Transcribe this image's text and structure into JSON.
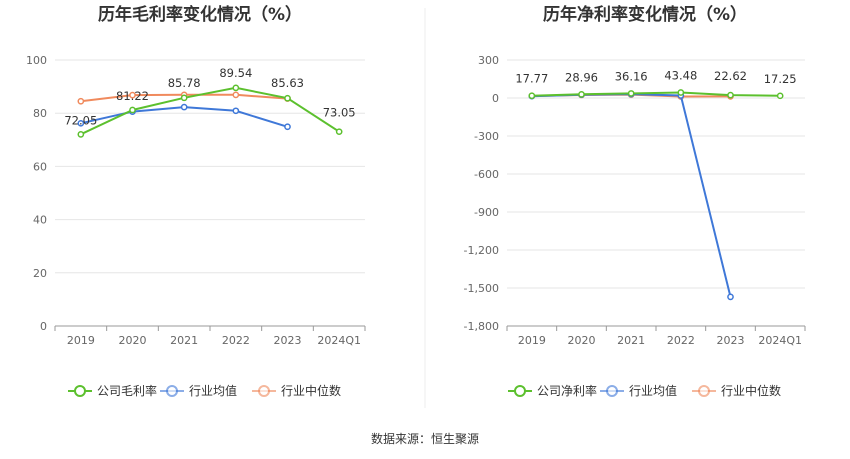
{
  "source_text": "数据来源：恒生聚源",
  "chart_data": [
    {
      "type": "line",
      "title": "历年毛利率变化情况（%）",
      "categories": [
        "2019",
        "2020",
        "2021",
        "2022",
        "2023",
        "2024Q1"
      ],
      "ylim": [
        0,
        100
      ],
      "yticks": [
        0,
        20,
        40,
        60,
        80,
        100
      ],
      "ytick_labels": [
        "0",
        "20",
        "40",
        "60",
        "80",
        "100"
      ],
      "grid": true,
      "legend_position": "bottom",
      "series": [
        {
          "name": "公司毛利率",
          "color": "#5cc02e",
          "values": [
            72.05,
            81.22,
            85.78,
            89.54,
            85.63,
            73.05
          ],
          "labels": [
            "72.05",
            "81.22",
            "85.78",
            "89.54",
            "85.63",
            "73.05"
          ]
        },
        {
          "name": "行业均值",
          "color": "#3f78d8",
          "values": [
            76.2,
            80.6,
            82.3,
            80.9,
            74.9,
            null
          ]
        },
        {
          "name": "行业中位数",
          "color": "#f08a5d",
          "values": [
            84.5,
            86.8,
            86.9,
            86.9,
            85.5,
            null
          ]
        }
      ]
    },
    {
      "type": "line",
      "title": "历年净利率变化情况（%）",
      "categories": [
        "2019",
        "2020",
        "2021",
        "2022",
        "2023",
        "2024Q1"
      ],
      "ylim": [
        -1800,
        300
      ],
      "yticks": [
        300,
        0,
        -300,
        -600,
        -900,
        -1200,
        -1500,
        -1800
      ],
      "ytick_labels": [
        "300",
        "0",
        "-300",
        "-600",
        "-900",
        "-1,200",
        "-1,500",
        "-1,800"
      ],
      "grid": true,
      "legend_position": "bottom",
      "series": [
        {
          "name": "公司净利率",
          "color": "#5cc02e",
          "values": [
            17.77,
            28.96,
            36.16,
            43.48,
            22.62,
            17.25
          ],
          "labels": [
            "17.77",
            "28.96",
            "36.16",
            "43.48",
            "22.62",
            "17.25"
          ]
        },
        {
          "name": "行业均值",
          "color": "#3f78d8",
          "values": [
            14.5,
            26.0,
            30.5,
            20.0,
            -1570.0,
            null
          ]
        },
        {
          "name": "行业中位数",
          "color": "#f08a5d",
          "values": [
            16.0,
            24.0,
            27.0,
            12.0,
            13.0,
            null
          ]
        }
      ]
    }
  ]
}
